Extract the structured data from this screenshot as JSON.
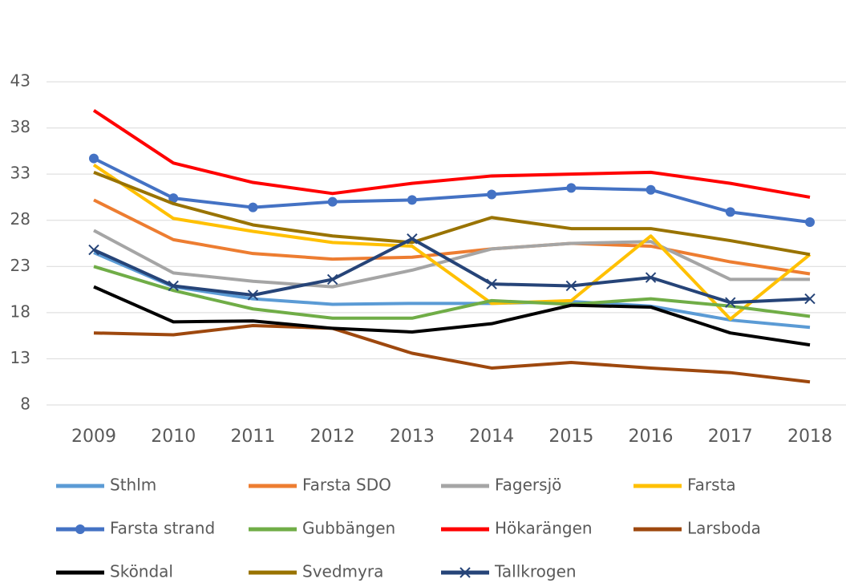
{
  "chart_data": {
    "type": "line",
    "categories": [
      "2009",
      "2010",
      "2011",
      "2012",
      "2013",
      "2014",
      "2015",
      "2016",
      "2017",
      "2018"
    ],
    "ylim": [
      8,
      43
    ],
    "yticks": [
      8,
      13,
      18,
      23,
      28,
      33,
      38,
      43
    ],
    "grid": true,
    "legend": "bottom",
    "series": [
      {
        "name": "Sthlm",
        "color": "#5b9bd5",
        "values": [
          24.5,
          20.8,
          19.5,
          18.9,
          19,
          19,
          19.2,
          18.7,
          17.2,
          16.4
        ]
      },
      {
        "name": "Farsta SDO",
        "color": "#ed7d31",
        "values": [
          30.2,
          25.9,
          24.4,
          23.8,
          24,
          24.9,
          25.5,
          25.2,
          23.5,
          22.2
        ]
      },
      {
        "name": "Fagersjö",
        "color": "#a5a5a5",
        "values": [
          26.9,
          22.3,
          21.4,
          20.8,
          22.6,
          24.9,
          25.5,
          25.7,
          21.6,
          21.6
        ]
      },
      {
        "name": "Farsta",
        "color": "#ffc000",
        "values": [
          34,
          28.2,
          26.8,
          25.6,
          25.2,
          19,
          19.3,
          26.3,
          17.3,
          24.3
        ]
      },
      {
        "name": "Farsta strand",
        "color": "#4472c4",
        "marker": "circle",
        "values": [
          34.7,
          30.4,
          29.4,
          30,
          30.2,
          30.8,
          31.5,
          31.3,
          28.9,
          27.8
        ]
      },
      {
        "name": "Gubbängen",
        "color": "#70ad47",
        "values": [
          23,
          20.4,
          18.4,
          17.4,
          17.4,
          19.3,
          18.9,
          19.5,
          18.7,
          17.6
        ]
      },
      {
        "name": "Hökarängen",
        "color": "#ff0000",
        "values": [
          39.9,
          34.2,
          32.1,
          30.9,
          32,
          32.8,
          33,
          33.2,
          32,
          30.5
        ]
      },
      {
        "name": "Larsboda",
        "color": "#9e480e",
        "values": [
          15.8,
          15.6,
          16.6,
          16.3,
          13.6,
          12,
          12.6,
          12,
          11.5,
          10.5
        ]
      },
      {
        "name": "Sköndal",
        "color": "#000000",
        "values": [
          20.8,
          17,
          17.1,
          16.3,
          15.9,
          16.8,
          18.8,
          18.6,
          15.8,
          14.5
        ]
      },
      {
        "name": "Svedmyra",
        "color": "#997300",
        "values": [
          33.2,
          29.8,
          27.5,
          26.3,
          25.6,
          28.3,
          27.1,
          27.1,
          25.8,
          24.3
        ]
      },
      {
        "name": "Tallkrogen",
        "color": "#264478",
        "marker": "x",
        "values": [
          24.8,
          20.9,
          19.9,
          21.6,
          26,
          21.1,
          20.9,
          21.8,
          19.1,
          19.5
        ]
      }
    ]
  }
}
